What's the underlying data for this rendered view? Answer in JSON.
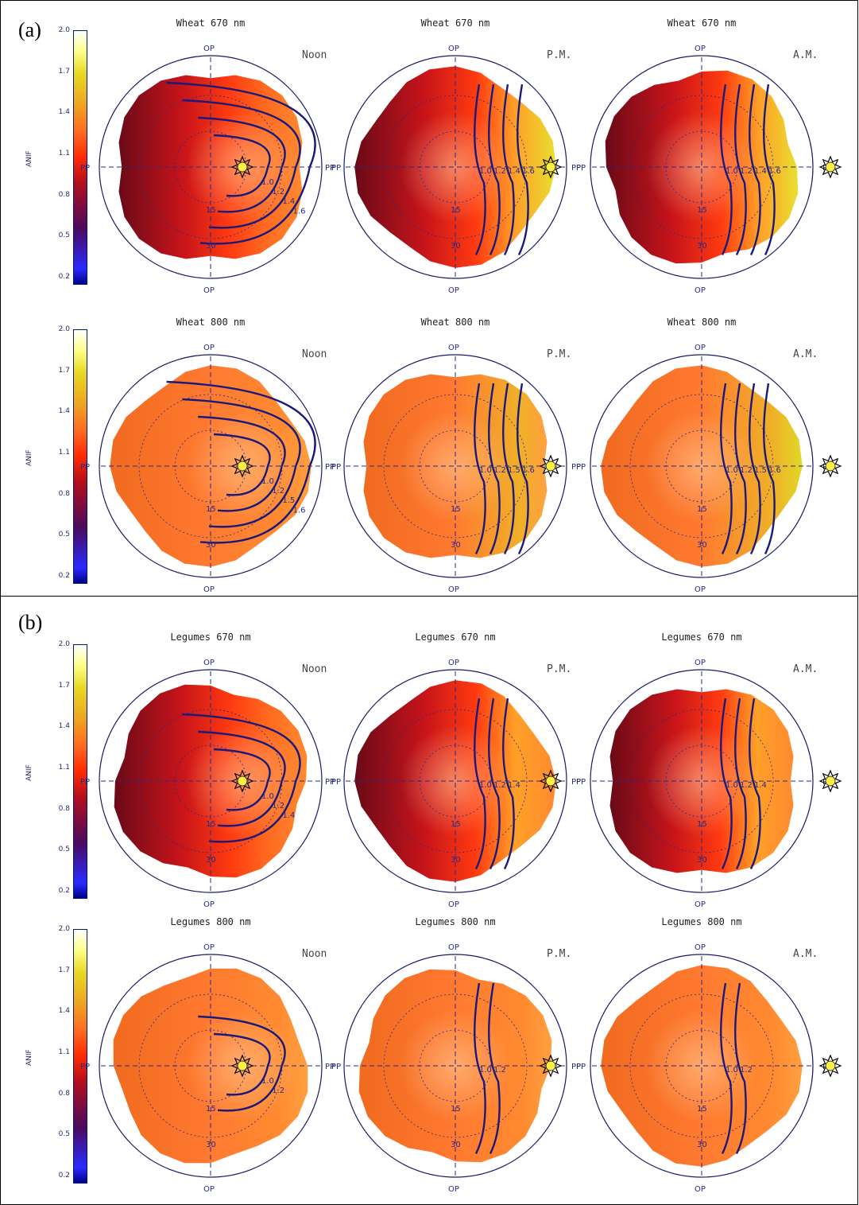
{
  "panel_labels": [
    "(a)",
    "(b)"
  ],
  "colorbar": {
    "label": "ANIF",
    "ticks": [
      "2.0",
      "1.7",
      "1.4",
      "1.1",
      "0.8",
      "0.5",
      "0.2"
    ]
  },
  "axis_labels": {
    "top": "OP",
    "bottom": "OP",
    "left": "PP",
    "right": "PP",
    "ring_inner": "15",
    "ring_outer": "30"
  },
  "times": [
    "Noon",
    "P.M.",
    "A.M."
  ],
  "rows": [
    {
      "title": "Wheat 670 nm",
      "contours": [
        "1.0",
        "1.2",
        "1.4",
        "1.6"
      ]
    },
    {
      "title": "Wheat 800 nm",
      "contours": [
        "1.0",
        "1.2",
        "1.5",
        "1.6"
      ]
    },
    {
      "title": "Legumes 670 nm",
      "contours": [
        "1.0",
        "1.2",
        "1.4"
      ]
    },
    {
      "title": "Legumes 800 nm",
      "contours": [
        "1.0",
        "1.2"
      ]
    }
  ],
  "colors": {
    "low": "#00008c",
    "mid": "#ff2a00",
    "high": "#ffff88",
    "contour": "#1a1a7a",
    "sun": "#ffee44"
  },
  "chart_data": {
    "type": "heatmap",
    "description_kind": "polar BRDF anisotropy (ANIF) plots",
    "colorbar_range": [
      0.2,
      2.0
    ],
    "plots": [
      {
        "title": "Wheat 670 nm",
        "time": "Noon",
        "hotspot": 1.0
      },
      {
        "title": "Wheat 670 nm",
        "time": "P.M.",
        "hotspot": 1.6
      },
      {
        "title": "Wheat 670 nm",
        "time": "A.M.",
        "hotspot": 1.8
      },
      {
        "title": "Wheat 800 nm",
        "time": "Noon",
        "hotspot": 1.1
      },
      {
        "title": "Wheat 800 nm",
        "time": "P.M.",
        "hotspot": 1.4
      },
      {
        "title": "Wheat 800 nm",
        "time": "A.M.",
        "hotspot": 1.6
      },
      {
        "title": "Legumes 670 nm",
        "time": "Noon",
        "hotspot": 1.0
      },
      {
        "title": "Legumes 670 nm",
        "time": "P.M.",
        "hotspot": 1.4
      },
      {
        "title": "Legumes 670 nm",
        "time": "A.M.",
        "hotspot": 1.4
      },
      {
        "title": "Legumes 800 nm",
        "time": "Noon",
        "hotspot": 1.1
      },
      {
        "title": "Legumes 800 nm",
        "time": "P.M.",
        "hotspot": 1.2
      },
      {
        "title": "Legumes 800 nm",
        "time": "A.M.",
        "hotspot": 1.2
      }
    ]
  }
}
